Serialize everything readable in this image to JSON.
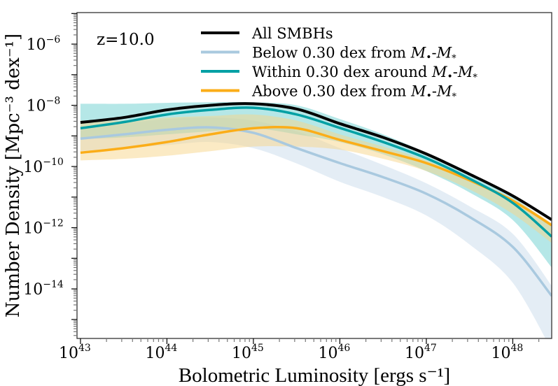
{
  "chart_data": {
    "type": "line",
    "title": "",
    "annotation": "z=10.0",
    "xlabel": "Bolometric Luminosity [ergs s⁻¹]",
    "ylabel": "Number Density [Mpc⁻³ dex⁻¹]",
    "xscale": "log",
    "yscale": "log",
    "xlim_log10": [
      42.96,
      48.45
    ],
    "ylim_log10": [
      -15.62,
      -4.97
    ],
    "x_ticks_log10": [
      43,
      44,
      45,
      46,
      47,
      48
    ],
    "y_ticks_log10": [
      -6,
      -8,
      -10,
      -12,
      -14
    ],
    "tick_base": "10",
    "grid": false,
    "legend_placement": "top-right",
    "x_log10": [
      43.0,
      43.5,
      44.0,
      44.5,
      45.0,
      45.5,
      46.0,
      46.5,
      47.0,
      47.5,
      48.0,
      48.45
    ],
    "series": [
      {
        "name": "All SMBHs",
        "color": "#000000",
        "y_log10": [
          -8.56,
          -8.4,
          -8.15,
          -8.0,
          -7.95,
          -8.12,
          -8.6,
          -9.05,
          -9.59,
          -10.25,
          -10.96,
          -11.74
        ]
      },
      {
        "name": "Below 0.30 dex from M•-M*",
        "color": "#a9c9df",
        "y_log10": [
          -9.09,
          -8.95,
          -8.8,
          -8.72,
          -8.9,
          -9.4,
          -9.89,
          -10.35,
          -10.89,
          -11.65,
          -12.63,
          -14.23
        ],
        "band_upper_log10": [
          -8.75,
          -8.6,
          -8.45,
          -8.4,
          -8.5,
          -8.85,
          -9.4,
          -9.95,
          -10.55,
          -11.3,
          -12.2,
          -13.9
        ],
        "band_lower_log10": [
          -9.5,
          -9.4,
          -9.3,
          -9.2,
          -9.4,
          -9.9,
          -10.5,
          -11.0,
          -11.6,
          -12.55,
          -13.8,
          -16.0
        ],
        "band_color": "#c9dcec"
      },
      {
        "name": "Within 0.30 dex around M•-M*",
        "color": "#00a0a4",
        "y_log10": [
          -8.75,
          -8.55,
          -8.3,
          -8.15,
          -8.08,
          -8.3,
          -8.74,
          -9.2,
          -9.73,
          -10.4,
          -11.19,
          -12.29
        ],
        "band_upper_log10": [
          -7.95,
          -7.95,
          -7.92,
          -7.9,
          -7.9,
          -8.0,
          -8.45,
          -8.95,
          -9.55,
          -10.2,
          -11.0,
          -11.9
        ],
        "band_lower_log10": [
          -9.1,
          -9.05,
          -8.95,
          -8.85,
          -8.75,
          -8.95,
          -9.2,
          -9.6,
          -10.15,
          -10.85,
          -11.75,
          -13.3
        ],
        "band_color": "#6ccfd0"
      },
      {
        "name": "Above 0.30 dex from M•-M*",
        "color": "#fbad18",
        "y_log10": [
          -9.55,
          -9.4,
          -9.2,
          -8.95,
          -8.75,
          -8.75,
          -9.13,
          -9.5,
          -9.89,
          -10.45,
          -11.12,
          -11.92
        ],
        "band_upper_log10": [
          -8.5,
          -8.5,
          -8.4,
          -8.35,
          -8.3,
          -8.5,
          -8.95,
          -9.35,
          -9.8,
          -10.4,
          -11.05,
          -11.85
        ],
        "band_lower_log10": [
          -9.8,
          -9.75,
          -9.65,
          -9.5,
          -9.35,
          -9.35,
          -9.45,
          -9.75,
          -10.15,
          -10.75,
          -11.55,
          -12.5
        ],
        "band_color": "#f7d58a"
      }
    ],
    "legend": [
      {
        "label_prefix": "All SMBHs",
        "math": false
      },
      {
        "label_prefix": "Below 0.30 dex from ",
        "math": true
      },
      {
        "label_prefix": "Within 0.30 dex around ",
        "math": true
      },
      {
        "label_prefix": "Above 0.30 dex from ",
        "math": true
      }
    ],
    "legend_math": {
      "m_bh": "M",
      "bullet": "•",
      "dash": "-",
      "m_star": "M",
      "star": "*"
    }
  }
}
